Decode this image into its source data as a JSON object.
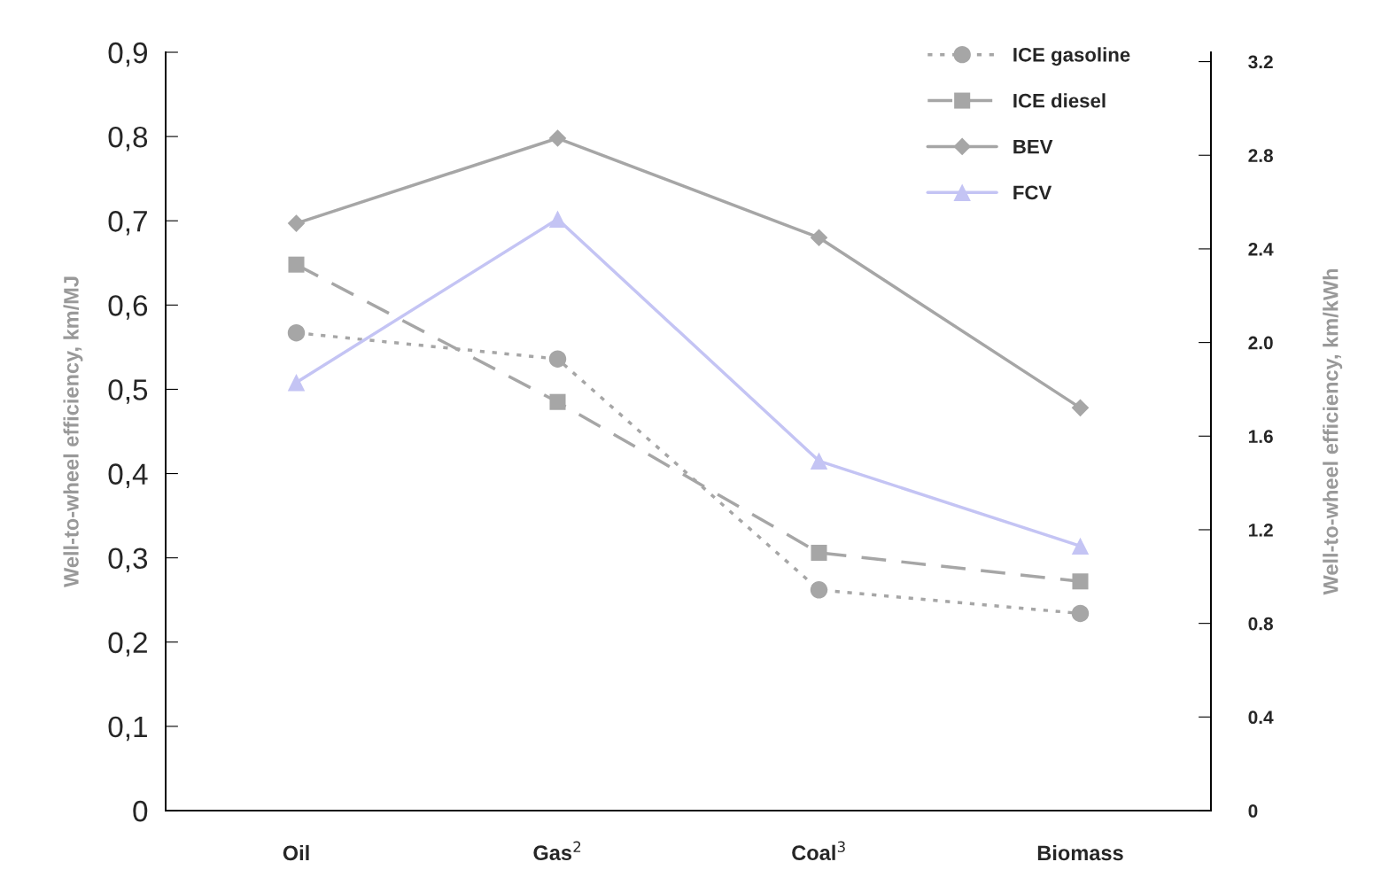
{
  "chart_data": {
    "type": "line",
    "categories": [
      "Oil",
      "Gas$^{2}$",
      "Coal$^{3}$",
      "Biomass"
    ],
    "ylabel": "Well-to-wheel efficiency, km/MJ",
    "y2label": "Well-to-wheel efficiency, km/kWh",
    "ylim": [
      0,
      0.9
    ],
    "yticks": [
      0,
      {
        "value": 0.1,
        "label": "0,1"
      },
      {
        "value": 0.2,
        "label": "0,2"
      },
      {
        "value": 0.3,
        "label": "0,3"
      },
      {
        "value": 0.4,
        "label": "0,4"
      },
      {
        "value": 0.5,
        "label": "0,5"
      },
      {
        "value": 0.6,
        "label": "0,6"
      },
      {
        "value": 0.7,
        "label": "0,7"
      },
      {
        "value": 0.8,
        "label": "0,8"
      },
      {
        "value": 0.9,
        "label": "0,9"
      }
    ],
    "y2lim": [
      0,
      3.24
    ],
    "y2ticks": [
      0,
      0.4,
      0.8,
      1.2,
      1.6,
      {
        "value": 2.0,
        "label": "2.0"
      },
      2.4,
      2.8,
      3.2
    ],
    "series": [
      {
        "name": "ICE gasoline",
        "color": "#a6a6a6",
        "marker": "circle",
        "line_style": "dotted",
        "values": [
          0.567,
          0.536,
          0.262,
          0.234
        ]
      },
      {
        "name": "ICE diesel",
        "color": "#a6a6a6",
        "marker": "square",
        "line_style": "dashed",
        "values": [
          0.648,
          0.485,
          0.306,
          0.272
        ]
      },
      {
        "name": "BEV",
        "color": "#a6a6a6",
        "marker": "diamond",
        "line_style": "solid",
        "values": [
          0.697,
          0.798,
          0.68,
          0.478
        ]
      },
      {
        "name": "FCV",
        "color": "#c4c4f4",
        "marker": "triangle",
        "line_style": "solid",
        "values": [
          0.508,
          0.702,
          0.415,
          0.314
        ]
      }
    ],
    "legend": "top right",
    "grid": false
  }
}
